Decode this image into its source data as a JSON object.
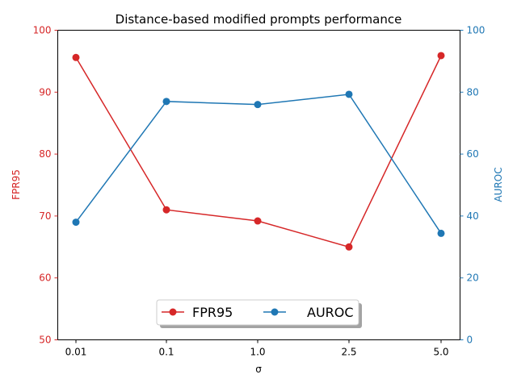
{
  "chart_data": {
    "type": "line",
    "title": "Distance-based modified prompts performance",
    "xlabel": "σ",
    "categories": [
      "0.01",
      "0.1",
      "1.0",
      "2.5",
      "5.0"
    ],
    "left_axis": {
      "label": "FPR95",
      "ylim": [
        50,
        100
      ],
      "ticks": [
        "50",
        "60",
        "70",
        "80",
        "90",
        "100"
      ],
      "color": "#d62728"
    },
    "right_axis": {
      "label": "AUROC",
      "ylim": [
        0,
        100
      ],
      "ticks": [
        "0",
        "20",
        "40",
        "60",
        "80",
        "100"
      ],
      "color": "#1f77b4"
    },
    "series": [
      {
        "name": "FPR95",
        "axis": "left",
        "color": "#d62728",
        "values": [
          95.6,
          71.0,
          69.2,
          65.0,
          95.9
        ]
      },
      {
        "name": "AUROC",
        "axis": "right",
        "color": "#1f77b4",
        "values": [
          38.0,
          77.0,
          76.0,
          79.3,
          34.4
        ]
      }
    ],
    "legend": {
      "placement": "bottom-center",
      "columns": 2
    },
    "grid": false
  }
}
